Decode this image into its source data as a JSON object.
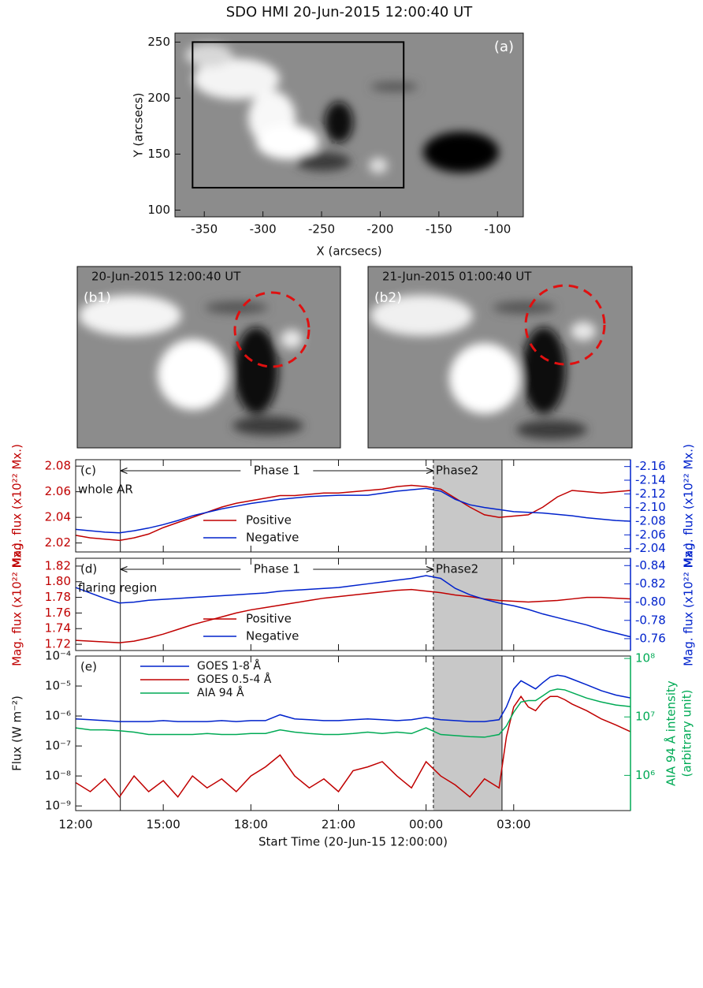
{
  "chart_data": [
    {
      "type": "image",
      "title": "SDO HMI 20-Jun-2015 12:00:40 UT",
      "panel_label": "(a)",
      "xlabel": "X (arcsecs)",
      "ylabel": "Y (arcsecs)",
      "xlim": [
        -375,
        -78
      ],
      "ylim": [
        94,
        258
      ],
      "xticks": [
        -350,
        -300,
        -250,
        -200,
        -150,
        -100
      ],
      "yticks": [
        100,
        150,
        200,
        250
      ],
      "box": {
        "x": [
          -360,
          -180
        ],
        "y": [
          120,
          250
        ]
      }
    },
    {
      "type": "line",
      "panel_label": "(c)",
      "region": "whole AR",
      "phase_labels": [
        "Phase 1",
        "Phase2"
      ],
      "phase_lines": [
        1.53,
        12.25,
        14.6
      ],
      "ylabel": "Mag. flux (x10²² Mx.)",
      "y2label": "Mag. flux (x10²² Mx.)",
      "ycolor": "#c00000",
      "y2color": "#0022cc",
      "xlim": [
        0,
        19
      ],
      "ylim": [
        2.013,
        2.085
      ],
      "y2lim": [
        -2.035,
        -2.17
      ],
      "yticks": [
        2.02,
        2.04,
        2.06,
        2.08
      ],
      "y2ticks": [
        -2.16,
        -2.14,
        -2.12,
        {
          "value": -2.1,
          "label": "-2.10"
        },
        -2.08,
        -2.06,
        -2.04
      ],
      "x": [
        0,
        0.5,
        1,
        1.5,
        2,
        2.5,
        3,
        3.5,
        4,
        4.5,
        5,
        5.5,
        6,
        6.5,
        7,
        7.5,
        8,
        8.5,
        9,
        9.5,
        10,
        10.5,
        11,
        11.5,
        12,
        12.5,
        13,
        13.5,
        14,
        14.5,
        15,
        15.5,
        16,
        16.5,
        17,
        17.5,
        18,
        18.5,
        19
      ],
      "series": [
        {
          "name": "Positive",
          "color": "#c00000",
          "axis": "y",
          "values": [
            2.026,
            2.024,
            2.023,
            2.022,
            2.024,
            2.027,
            2.032,
            2.036,
            2.04,
            2.044,
            2.048,
            2.051,
            2.053,
            2.055,
            2.057,
            2.057,
            2.058,
            2.059,
            2.059,
            2.06,
            2.061,
            2.062,
            2.064,
            2.065,
            2.064,
            2.062,
            2.055,
            2.048,
            2.042,
            2.04,
            2.041,
            2.042,
            2.048,
            2.056,
            2.061,
            2.06,
            2.059,
            2.06,
            2.061
          ]
        },
        {
          "name": "Negative",
          "color": "#0022cc",
          "axis": "y2",
          "values": [
            -2.068,
            -2.066,
            -2.064,
            -2.063,
            -2.066,
            -2.07,
            -2.075,
            -2.081,
            -2.088,
            -2.093,
            -2.098,
            -2.102,
            -2.106,
            -2.109,
            -2.112,
            -2.114,
            -2.116,
            -2.117,
            -2.118,
            -2.118,
            -2.118,
            -2.121,
            -2.124,
            -2.126,
            -2.128,
            -2.124,
            -2.112,
            -2.104,
            -2.1,
            -2.097,
            -2.094,
            -2.093,
            -2.092,
            -2.09,
            -2.088,
            -2.085,
            -2.083,
            -2.081,
            -2.08
          ]
        }
      ]
    },
    {
      "type": "line",
      "panel_label": "(d)",
      "region": "flaring region",
      "phase_labels": [
        "Phase 1",
        "Phase2"
      ],
      "phase_lines": [
        1.53,
        12.25,
        14.6
      ],
      "ylabel": "Mag. flux (x10²² Mx.)",
      "y2label": "Mag. flux (x10²² Mx.)",
      "ycolor": "#c00000",
      "y2color": "#0022cc",
      "xlim": [
        0,
        19
      ],
      "ylim": [
        1.712,
        1.83
      ],
      "y2lim": [
        -0.747,
        -0.848
      ],
      "yticks": [
        1.72,
        1.74,
        1.76,
        1.78,
        {
          "value": 1.8,
          "label": "1.80"
        },
        1.82
      ],
      "y2ticks": [
        -0.84,
        -0.82,
        {
          "value": -0.8,
          "label": "-0.80"
        },
        -0.78,
        -0.76
      ],
      "x": [
        0,
        0.5,
        1,
        1.5,
        2,
        2.5,
        3,
        3.5,
        4,
        4.5,
        5,
        5.5,
        6,
        6.5,
        7,
        7.5,
        8,
        8.5,
        9,
        9.5,
        10,
        10.5,
        11,
        11.5,
        12,
        12.5,
        13,
        13.5,
        14,
        14.5,
        15,
        15.5,
        16,
        16.5,
        17,
        17.5,
        18,
        18.5,
        19
      ],
      "series": [
        {
          "name": "Positive",
          "color": "#c00000",
          "axis": "y",
          "values": [
            1.725,
            1.724,
            1.723,
            1.722,
            1.724,
            1.728,
            1.733,
            1.739,
            1.745,
            1.75,
            1.755,
            1.76,
            1.764,
            1.767,
            1.77,
            1.773,
            1.776,
            1.779,
            1.781,
            1.783,
            1.785,
            1.787,
            1.789,
            1.79,
            1.788,
            1.786,
            1.783,
            1.781,
            1.778,
            1.776,
            1.775,
            1.774,
            1.775,
            1.776,
            1.778,
            1.78,
            1.78,
            1.779,
            1.778
          ]
        },
        {
          "name": "Negative",
          "color": "#0022cc",
          "axis": "y2",
          "values": [
            -0.816,
            -0.81,
            -0.804,
            -0.799,
            -0.8,
            -0.802,
            -0.803,
            -0.804,
            -0.805,
            -0.806,
            -0.807,
            -0.808,
            -0.809,
            -0.81,
            -0.812,
            -0.813,
            -0.814,
            -0.815,
            -0.816,
            -0.818,
            -0.82,
            -0.822,
            -0.824,
            -0.826,
            -0.829,
            -0.826,
            -0.815,
            -0.808,
            -0.803,
            -0.799,
            -0.796,
            -0.792,
            -0.787,
            -0.783,
            -0.779,
            -0.775,
            -0.77,
            -0.766,
            -0.762
          ]
        }
      ]
    },
    {
      "type": "line",
      "panel_label": "(e)",
      "phase_lines": [
        1.53,
        12.25,
        14.6
      ],
      "ylabel": "Flux (W m⁻²)",
      "y2label": [
        "AIA 94 Å intensity",
        "(arbitrary unit)"
      ],
      "ycolor": "#111111",
      "y2color": "#00aa55",
      "xlabel": "Start Time (20-Jun-15 12:00:00)",
      "ylog": true,
      "y2log": true,
      "xlim": [
        0,
        19
      ],
      "ylim": [
        7e-10,
        0.0001
      ],
      "y2lim": [
        250000,
        110000000
      ],
      "xticks": [
        {
          "value": 0,
          "label": "12:00"
        },
        {
          "value": 3,
          "label": "15:00"
        },
        {
          "value": 6,
          "label": "18:00"
        },
        {
          "value": 9,
          "label": "21:00"
        },
        {
          "value": 12,
          "label": "00:00"
        },
        {
          "value": 15,
          "label": "03:00"
        }
      ],
      "yticks": [
        {
          "value": 0.0001,
          "label": "10⁻⁴"
        },
        {
          "value": 1e-05,
          "label": "10⁻⁵"
        },
        {
          "value": 1e-06,
          "label": "10⁻⁶"
        },
        {
          "value": 1e-07,
          "label": "10⁻⁷"
        },
        {
          "value": 1e-08,
          "label": "10⁻⁸"
        },
        {
          "value": 1e-09,
          "label": "10⁻⁹"
        }
      ],
      "y2ticks": [
        {
          "value": 100000000,
          "label": "10⁸"
        },
        {
          "value": 10000000,
          "label": "10⁷"
        },
        {
          "value": 1000000,
          "label": "10⁶"
        }
      ],
      "x": [
        0,
        0.5,
        1,
        1.5,
        2,
        2.5,
        3,
        3.5,
        4,
        4.5,
        5,
        5.5,
        6,
        6.5,
        7,
        7.5,
        8,
        8.5,
        9,
        9.5,
        10,
        10.5,
        11,
        11.5,
        12,
        12.5,
        13,
        13.5,
        14,
        14.5,
        14.75,
        15,
        15.25,
        15.5,
        15.75,
        16,
        16.25,
        16.5,
        16.75,
        17,
        17.5,
        18,
        18.5,
        19
      ],
      "series": [
        {
          "name": "GOES 1-8 Å",
          "color": "#0022cc",
          "axis": "y",
          "values": [
            8e-07,
            7.5e-07,
            7e-07,
            6.5e-07,
            6.5e-07,
            6.5e-07,
            7e-07,
            6.5e-07,
            6.5e-07,
            6.5e-07,
            7e-07,
            6.5e-07,
            7e-07,
            7e-07,
            1.1e-06,
            8e-07,
            7.5e-07,
            7e-07,
            7e-07,
            7.5e-07,
            8e-07,
            7.5e-07,
            7e-07,
            7.5e-07,
            9e-07,
            7.5e-07,
            7e-07,
            6.5e-07,
            6.5e-07,
            7.5e-07,
            2e-06,
            8e-06,
            1.5e-05,
            1.1e-05,
            8e-06,
            1.3e-05,
            2e-05,
            2.3e-05,
            2.1e-05,
            1.7e-05,
            1.1e-05,
            7e-06,
            5e-06,
            4e-06
          ]
        },
        {
          "name": "GOES 0.5-4 Å",
          "color": "#c00000",
          "axis": "y",
          "values": [
            6e-09,
            3e-09,
            8e-09,
            2e-09,
            1e-08,
            3e-09,
            7e-09,
            2e-09,
            1e-08,
            4e-09,
            8e-09,
            3e-09,
            1e-08,
            2e-08,
            5e-08,
            1e-08,
            4e-09,
            8e-09,
            3e-09,
            1.5e-08,
            2e-08,
            3e-08,
            1e-08,
            4e-09,
            3e-08,
            1e-08,
            5e-09,
            2e-09,
            8e-09,
            4e-09,
            2e-07,
            2e-06,
            4.5e-06,
            2e-06,
            1.5e-06,
            3e-06,
            4.5e-06,
            4.5e-06,
            3.5e-06,
            2.5e-06,
            1.5e-06,
            8e-07,
            5e-07,
            3e-07
          ]
        },
        {
          "name": "AIA 94 Å",
          "color": "#00aa55",
          "axis": "y2",
          "values": [
            6500000,
            6000000,
            6000000,
            5800000,
            5500000,
            5000000,
            5000000,
            5000000,
            5000000,
            5200000,
            5000000,
            5000000,
            5200000,
            5200000,
            6000000,
            5500000,
            5200000,
            5000000,
            5000000,
            5200000,
            5500000,
            5200000,
            5500000,
            5200000,
            6500000,
            5000000,
            4800000,
            4600000,
            4500000,
            5000000,
            7000000,
            12000000,
            18000000,
            19000000,
            19000000,
            23000000,
            28000000,
            30000000,
            29000000,
            26000000,
            21000000,
            18000000,
            16000000,
            15000000
          ]
        }
      ]
    }
  ],
  "snapshots": [
    {
      "label": "(b1)",
      "date": "20-Jun-2015 12:00:40 UT"
    },
    {
      "label": "(b2)",
      "date": "21-Jun-2015 01:00:40 UT"
    }
  ]
}
